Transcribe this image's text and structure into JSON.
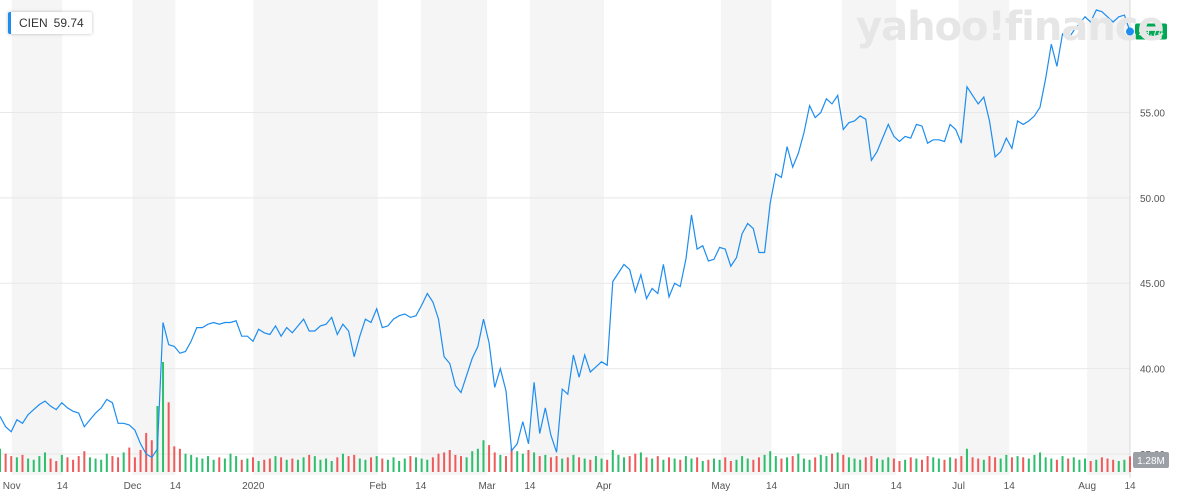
{
  "ticker": {
    "symbol": "CIEN",
    "last_price": "59.74"
  },
  "watermark": "yahoo!finance",
  "volume_label": "1.28M",
  "colors": {
    "line": "#1d8df0",
    "up": "#2dbf6c",
    "down": "#ef5a5a",
    "band": "#f5f5f5",
    "grid": "#e8e8e8",
    "price_tag": "#00a854"
  },
  "chart_data": {
    "type": "line",
    "ylim": [
      35,
      61
    ],
    "y_ticks": [
      "35.00",
      "40.00",
      "45.00",
      "50.00",
      "55.00"
    ],
    "x_ticks": [
      {
        "label": "Nov",
        "date": "2019-11-01"
      },
      {
        "label": "14",
        "date": "2019-11-14"
      },
      {
        "label": "Dec",
        "date": "2019-12-02"
      },
      {
        "label": "14",
        "date": "2019-12-13"
      },
      {
        "label": "2020",
        "date": "2020-01-02"
      },
      {
        "label": "Feb",
        "date": "2020-02-03"
      },
      {
        "label": "14",
        "date": "2020-02-14"
      },
      {
        "label": "Mar",
        "date": "2020-03-02"
      },
      {
        "label": "14",
        "date": "2020-03-13"
      },
      {
        "label": "Apr",
        "date": "2020-04-01"
      },
      {
        "label": "May",
        "date": "2020-05-01"
      },
      {
        "label": "14",
        "date": "2020-05-14"
      },
      {
        "label": "Jun",
        "date": "2020-06-01"
      },
      {
        "label": "14",
        "date": "2020-06-15"
      },
      {
        "label": "Jul",
        "date": "2020-07-01"
      },
      {
        "label": "14",
        "date": "2020-07-14"
      },
      {
        "label": "Aug",
        "date": "2020-08-03"
      },
      {
        "label": "14",
        "date": "2020-08-14"
      }
    ],
    "series": [
      {
        "values": [
          37.2,
          36.6,
          36.3,
          37.0,
          36.8,
          37.3,
          37.6,
          37.9,
          38.1,
          37.8,
          37.6,
          38.0,
          37.7,
          37.5,
          37.4,
          36.6,
          37.0,
          37.4,
          37.7,
          38.2,
          38.0,
          36.8,
          36.8,
          36.7,
          36.4,
          35.6,
          35.0,
          34.8,
          35.3,
          42.7,
          41.4,
          41.3,
          40.9,
          41.0,
          41.6,
          42.4,
          42.4,
          42.6,
          42.7,
          42.6,
          42.7,
          42.7,
          42.8,
          41.9,
          41.9,
          41.6,
          42.3,
          42.1,
          42.0,
          42.5,
          41.9,
          42.4,
          42.1,
          42.5,
          42.9,
          42.2,
          42.2,
          42.5,
          42.6,
          43.0,
          42.0,
          42.6,
          42.2,
          40.7,
          41.9,
          42.9,
          42.7,
          43.5,
          42.4,
          42.5,
          42.9,
          43.1,
          43.2,
          43.0,
          43.1,
          43.7,
          44.4,
          43.9,
          42.9,
          40.7,
          40.3,
          39.0,
          38.6,
          39.6,
          40.6,
          41.3,
          42.9,
          41.5,
          38.9,
          40.0,
          38.7,
          35.2,
          35.6,
          36.9,
          35.6,
          39.2,
          36.2,
          37.7,
          36.1,
          35.1,
          38.8,
          38.5,
          40.8,
          39.5,
          40.8,
          39.8,
          40.1,
          40.4,
          40.2,
          45.1,
          45.6,
          46.1,
          45.8,
          44.5,
          45.5,
          44.1,
          44.7,
          44.4,
          46.1,
          44.2,
          45.0,
          44.8,
          46.4,
          49.0,
          47.0,
          47.2,
          46.3,
          46.4,
          47.1,
          47.0,
          46.0,
          46.5,
          47.9,
          48.5,
          48.2,
          46.8,
          46.8,
          49.7,
          51.4,
          51.2,
          53.0,
          51.8,
          52.6,
          53.8,
          55.4,
          54.7,
          55.0,
          55.8,
          55.5,
          56.0,
          54.0,
          54.4,
          54.5,
          54.8,
          54.6,
          52.2,
          52.7,
          53.5,
          54.3,
          53.6,
          53.3,
          53.6,
          53.5,
          54.3,
          54.2,
          53.2,
          53.4,
          53.4,
          53.3,
          54.3,
          54.0,
          53.2,
          56.5,
          56.0,
          55.5,
          55.9,
          54.5,
          52.4,
          52.7,
          53.5,
          52.9,
          54.5,
          54.3,
          54.5,
          54.8,
          55.3,
          57.0,
          59.0,
          57.7,
          59.6,
          59.3,
          59.8,
          60.2,
          60.6,
          60.3,
          61.0,
          60.9,
          60.6,
          60.3,
          60.6,
          60.7,
          59.74
        ]
      }
    ],
    "volume": [
      1.9,
      1.5,
      1.3,
      1.2,
      1.4,
      1.1,
      1.0,
      1.3,
      1.6,
      1.1,
      0.9,
      1.4,
      1.2,
      1.0,
      1.3,
      1.7,
      1.2,
      1.1,
      1.0,
      1.5,
      1.3,
      1.2,
      1.6,
      2.0,
      1.2,
      1.8,
      3.2,
      2.6,
      5.4,
      9.0,
      5.7,
      2.1,
      1.9,
      1.5,
      1.4,
      1.2,
      1.1,
      1.3,
      1.0,
      1.2,
      1.1,
      1.5,
      1.3,
      1.0,
      1.1,
      1.2,
      0.9,
      1.0,
      1.1,
      1.3,
      1.2,
      1.0,
      1.1,
      1.0,
      1.2,
      1.4,
      1.3,
      1.0,
      1.1,
      0.9,
      1.2,
      1.5,
      1.3,
      1.4,
      1.1,
      1.0,
      1.2,
      1.3,
      1.1,
      1.0,
      1.2,
      0.9,
      1.1,
      1.3,
      1.2,
      1.1,
      1.0,
      1.2,
      1.5,
      1.6,
      1.8,
      1.4,
      1.3,
      1.2,
      1.7,
      1.9,
      2.6,
      2.2,
      1.6,
      1.4,
      1.3,
      1.9,
      1.7,
      1.5,
      1.8,
      1.6,
      1.3,
      1.4,
      1.2,
      1.3,
      1.1,
      1.2,
      1.4,
      1.2,
      1.1,
      1.0,
      1.3,
      1.1,
      1.0,
      1.8,
      1.4,
      1.2,
      1.3,
      1.5,
      1.6,
      1.2,
      1.1,
      1.3,
      1.0,
      1.2,
      1.1,
      1.0,
      1.3,
      1.1,
      1.2,
      0.9,
      1.0,
      1.1,
      1.0,
      1.2,
      0.9,
      1.0,
      1.3,
      1.1,
      1.0,
      1.2,
      1.4,
      1.7,
      1.3,
      1.1,
      1.2,
      1.3,
      1.5,
      1.1,
      1.0,
      1.2,
      1.4,
      1.3,
      1.5,
      1.6,
      1.4,
      1.2,
      1.1,
      1.0,
      1.2,
      1.3,
      1.1,
      1.0,
      1.2,
      1.1,
      0.9,
      1.0,
      1.2,
      1.1,
      1.0,
      1.3,
      1.2,
      1.1,
      1.0,
      1.2,
      1.1,
      1.3,
      1.9,
      1.2,
      1.1,
      1.0,
      1.3,
      1.2,
      1.1,
      1.4,
      1.2,
      1.3,
      1.2,
      1.1,
      1.4,
      1.6,
      1.2,
      1.1,
      1.0,
      1.3,
      1.1,
      1.2,
      1.0,
      1.1,
      0.9,
      1.0,
      1.2,
      1.1,
      1.0,
      0.9,
      1.0,
      1.28
    ]
  }
}
